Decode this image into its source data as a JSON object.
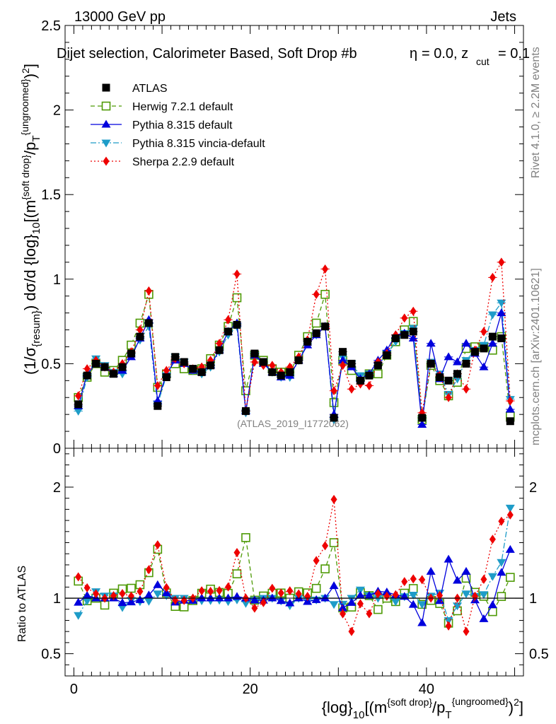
{
  "header": {
    "left": "13000 GeV pp",
    "right": "Jets",
    "selection_line": "Dijet selection, Calorimeter Based, Soft Drop #b",
    "eta_text": "= 0.0, z",
    "zcut_sub": "cut",
    "zcut_val": "= 0.1",
    "eta_symbol": "η"
  },
  "side_labels": {
    "rivet": "Rivet 4.1.0, ≥ 2.2M events",
    "mcplots": "mcplots.cern.ch [arXiv:2401.10621]"
  },
  "watermark": "(ATLAS_2019_I1772062)",
  "ylabel_main": {
    "p1": "(1/σ",
    "p2": "{resum}",
    "p3": ") dσ/d {log}",
    "p4": "10",
    "p5": "[(m",
    "p6": "{soft drop}",
    "p7": "/p",
    "p8": "T",
    "p9": "{ungroomed}",
    "p10": ")",
    "p11": "2",
    "p12": "]"
  },
  "ylabel_ratio": "Ratio to ATLAS",
  "xlabel": {
    "p1": "{log}",
    "p2": "10",
    "p3": "[(m",
    "p4": "{soft drop}",
    "p5": "/p",
    "p6": "T",
    "p7": "{ungroomed}",
    "p8": ")",
    "p9": "2",
    "p10": "]"
  },
  "legend": [
    {
      "label": "ATLAS",
      "color": "#000000",
      "marker": "square-filled",
      "line": "none"
    },
    {
      "label": "Herwig 7.2.1 default",
      "color": "#4e9a06",
      "marker": "square-open",
      "line": "dashed"
    },
    {
      "label": "Pythia 8.315 default",
      "color": "#0000dd",
      "marker": "triangle-up",
      "line": "solid"
    },
    {
      "label": "Pythia 8.315 vincia-default",
      "color": "#1e9cc8",
      "marker": "triangle-down",
      "line": "dashdot"
    },
    {
      "label": "Sherpa 2.2.9 default",
      "color": "#ee0000",
      "marker": "diamond",
      "line": "dotted"
    }
  ],
  "chart_data": {
    "type": "line",
    "title": "Dijet selection, Calorimeter Based, Soft Drop #b = 0.0, z_cut = 0.1",
    "x": [
      0.5,
      1.5,
      2.5,
      3.5,
      4.5,
      5.5,
      6.5,
      7.5,
      8.5,
      9.5,
      10.5,
      11.5,
      12.5,
      13.5,
      14.5,
      15.5,
      16.5,
      17.5,
      18.5,
      19.5,
      20.5,
      21.5,
      22.5,
      23.5,
      24.5,
      25.5,
      26.5,
      27.5,
      28.5,
      29.5,
      30.5,
      31.5,
      32.5,
      33.5,
      34.5,
      35.5,
      36.5,
      37.5,
      38.5,
      39.5,
      40.5,
      41.5,
      42.5,
      43.5,
      44.5,
      45.5,
      46.5,
      47.5,
      48.5,
      49.5
    ],
    "xlim": [
      -1,
      51
    ],
    "xticks": [
      0,
      20,
      40
    ],
    "main_ylim": [
      0,
      2.5
    ],
    "main_yticks": [
      0,
      0.5,
      1,
      1.5,
      2,
      2.5
    ],
    "ratio_ylim": [
      0.3,
      2.35
    ],
    "ratio_yticks": [
      0.5,
      1,
      2
    ],
    "series": [
      {
        "name": "ATLAS",
        "values": [
          0.26,
          0.43,
          0.5,
          0.48,
          0.44,
          0.48,
          0.56,
          0.66,
          0.74,
          0.25,
          0.42,
          0.54,
          0.51,
          0.47,
          0.45,
          0.49,
          0.58,
          0.69,
          0.73,
          0.22,
          0.56,
          0.51,
          0.45,
          0.43,
          0.45,
          0.52,
          0.63,
          0.68,
          0.72,
          0.18,
          0.57,
          0.5,
          0.4,
          0.43,
          0.49,
          0.55,
          0.65,
          0.67,
          0.69,
          0.18,
          0.5,
          0.42,
          0.4,
          0.44,
          0.5,
          0.57,
          0.59,
          0.66,
          0.65,
          0.16
        ]
      },
      {
        "name": "Herwig 7.2.1 default",
        "values": [
          0.3,
          0.42,
          0.5,
          0.45,
          0.46,
          0.52,
          0.61,
          0.74,
          0.91,
          0.36,
          0.44,
          0.5,
          0.47,
          0.46,
          0.47,
          0.53,
          0.61,
          0.72,
          0.89,
          0.34,
          0.55,
          0.52,
          0.47,
          0.45,
          0.45,
          0.55,
          0.66,
          0.74,
          0.91,
          0.27,
          0.52,
          0.46,
          0.42,
          0.44,
          0.44,
          0.55,
          0.63,
          0.7,
          0.75,
          0.17,
          0.49,
          0.4,
          0.31,
          0.39,
          0.59,
          0.6,
          0.6,
          0.58,
          0.66,
          0.19
        ]
      },
      {
        "name": "Pythia 8.315 default",
        "values": [
          0.25,
          0.44,
          0.5,
          0.48,
          0.44,
          0.46,
          0.54,
          0.65,
          0.76,
          0.28,
          0.44,
          0.52,
          0.5,
          0.46,
          0.45,
          0.49,
          0.58,
          0.69,
          0.74,
          0.22,
          0.55,
          0.5,
          0.45,
          0.42,
          0.43,
          0.52,
          0.61,
          0.67,
          0.72,
          0.2,
          0.52,
          0.48,
          0.41,
          0.44,
          0.52,
          0.58,
          0.67,
          0.68,
          0.65,
          0.14,
          0.62,
          0.41,
          0.54,
          0.51,
          0.62,
          0.56,
          0.48,
          0.62,
          0.8,
          0.23
        ]
      },
      {
        "name": "Pythia 8.315 vincia-default",
        "values": [
          0.22,
          0.42,
          0.53,
          0.49,
          0.45,
          0.44,
          0.55,
          0.64,
          0.72,
          0.26,
          0.43,
          0.54,
          0.51,
          0.46,
          0.44,
          0.48,
          0.57,
          0.67,
          0.72,
          0.21,
          0.55,
          0.51,
          0.45,
          0.42,
          0.42,
          0.52,
          0.62,
          0.67,
          0.72,
          0.17,
          0.54,
          0.5,
          0.43,
          0.44,
          0.49,
          0.56,
          0.63,
          0.68,
          0.71,
          0.17,
          0.51,
          0.44,
          0.32,
          0.41,
          0.52,
          0.58,
          0.61,
          0.79,
          0.86,
          0.29
        ]
      },
      {
        "name": "Sherpa 2.2.9 default",
        "values": [
          0.31,
          0.47,
          0.52,
          0.48,
          0.45,
          0.5,
          0.57,
          0.7,
          0.93,
          0.37,
          0.46,
          0.53,
          0.5,
          0.47,
          0.48,
          0.52,
          0.62,
          0.76,
          1.03,
          0.22,
          0.51,
          0.49,
          0.49,
          0.45,
          0.48,
          0.54,
          0.64,
          0.91,
          1.06,
          0.34,
          0.49,
          0.35,
          0.38,
          0.37,
          0.51,
          0.56,
          0.67,
          0.77,
          0.81,
          0.21,
          0.5,
          0.43,
          0.3,
          0.44,
          0.35,
          0.58,
          0.69,
          1.01,
          1.1,
          0.28
        ]
      }
    ]
  }
}
